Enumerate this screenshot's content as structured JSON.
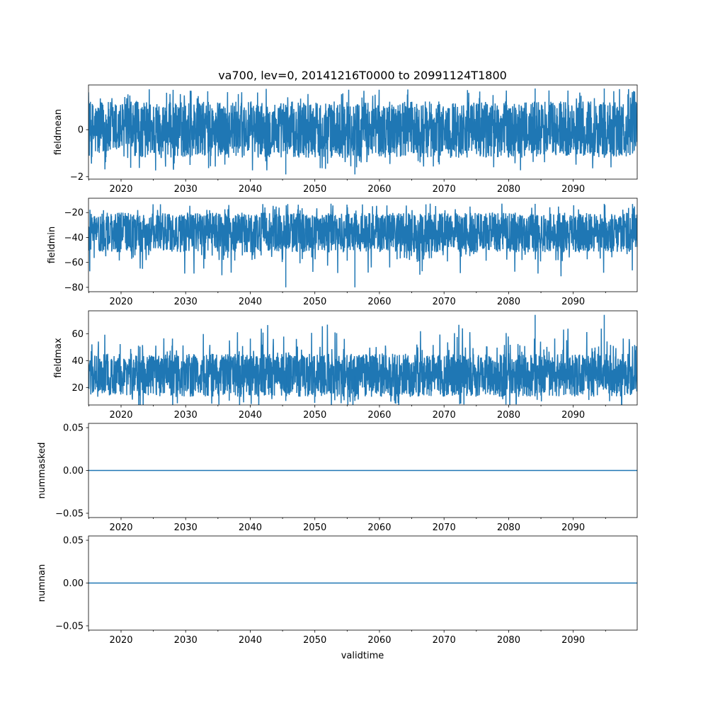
{
  "figure": {
    "title": "va700, lev=0, 20141216T0000 to 20991124T1800",
    "xlabel": "validtime"
  },
  "chart_data": [
    {
      "type": "line",
      "id": "fieldmean",
      "ylabel": "fieldmean",
      "color": "#1f77b4",
      "xlim": [
        2014.96,
        2099.9
      ],
      "ylim": [
        -2.1,
        1.9
      ],
      "xticks": [
        2020,
        2030,
        2040,
        2050,
        2060,
        2070,
        2080,
        2090
      ],
      "yticks": [
        -2,
        0
      ],
      "ytick_labels": [
        "−2",
        "0"
      ],
      "series_summary": {
        "name": "fieldmean",
        "typical_range": [
          -1.2,
          1.2
        ],
        "extreme_low": -1.9,
        "extreme_high": 1.75
      }
    },
    {
      "type": "line",
      "id": "fieldmin",
      "ylabel": "fieldmin",
      "color": "#1f77b4",
      "xlim": [
        2014.96,
        2099.9
      ],
      "ylim": [
        -83.5,
        -8.5
      ],
      "xticks": [
        2020,
        2030,
        2040,
        2050,
        2060,
        2070,
        2080,
        2090
      ],
      "yticks": [
        -80,
        -60,
        -40,
        -20
      ],
      "ytick_labels": [
        "−80",
        "−60",
        "−40",
        "−20"
      ],
      "series_summary": {
        "name": "fieldmin",
        "typical_range": [
          -52,
          -20
        ],
        "extreme_low": -80,
        "extreme_high": -13
      }
    },
    {
      "type": "line",
      "id": "fieldmax",
      "ylabel": "fieldmax",
      "color": "#1f77b4",
      "xlim": [
        2014.96,
        2099.9
      ],
      "ylim": [
        7,
        77
      ],
      "xticks": [
        2020,
        2030,
        2040,
        2050,
        2060,
        2070,
        2080,
        2090
      ],
      "yticks": [
        20,
        40,
        60
      ],
      "ytick_labels": [
        "20",
        "40",
        "60"
      ],
      "series_summary": {
        "name": "fieldmax",
        "typical_range": [
          13,
          45
        ],
        "extreme_low": 10,
        "extreme_high": 74
      }
    },
    {
      "type": "line",
      "id": "nummasked",
      "ylabel": "nummasked",
      "color": "#1f77b4",
      "xlim": [
        2014.96,
        2099.9
      ],
      "ylim": [
        -0.055,
        0.055
      ],
      "xticks": [
        2020,
        2030,
        2040,
        2050,
        2060,
        2070,
        2080,
        2090
      ],
      "yticks": [
        -0.05,
        0.0,
        0.05
      ],
      "ytick_labels": [
        "−0.05",
        "0.00",
        "0.05"
      ],
      "constant_value": 0
    },
    {
      "type": "line",
      "id": "numnan",
      "ylabel": "numnan",
      "color": "#1f77b4",
      "xlim": [
        2014.96,
        2099.9
      ],
      "ylim": [
        -0.055,
        0.055
      ],
      "xticks": [
        2020,
        2030,
        2040,
        2050,
        2060,
        2070,
        2080,
        2090
      ],
      "yticks": [
        -0.05,
        0.0,
        0.05
      ],
      "ytick_labels": [
        "−0.05",
        "0.00",
        "0.05"
      ],
      "constant_value": 0
    }
  ]
}
